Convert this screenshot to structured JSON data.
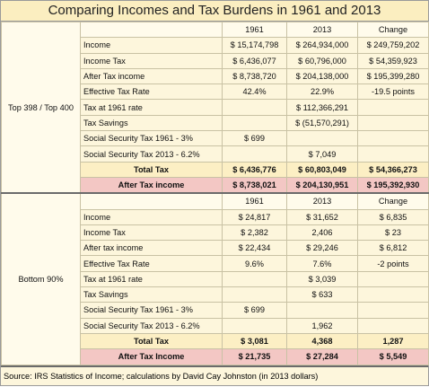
{
  "title": "Comparing Incomes and Tax Burdens in 1961 and 2013",
  "sections": [
    {
      "group": "Top 398 / Top 400",
      "header": [
        "1961",
        "2013",
        "Change"
      ],
      "rows": [
        {
          "label": "Income",
          "values": [
            "$ 15,174,798",
            "$ 264,934,000",
            "$ 249,759,202"
          ]
        },
        {
          "label": "Income Tax",
          "values": [
            "$ 6,436,077",
            "$ 60,796,000",
            "$ 54,359,923"
          ]
        },
        {
          "label": "After Tax income",
          "values": [
            "$ 8,738,720",
            "$ 204,138,000",
            "$ 195,399,280"
          ]
        },
        {
          "label": "Effective Tax Rate",
          "values": [
            "42.4%",
            "22.9%",
            "-19.5 points"
          ]
        },
        {
          "label": "Tax at 1961 rate",
          "values": [
            null,
            "$ 112,366,291",
            null
          ]
        },
        {
          "label": "Tax Savings",
          "values": [
            null,
            "$ (51,570,291)",
            null
          ]
        },
        {
          "label": "Social Security Tax 1961 - 3%",
          "values": [
            "$ 699",
            null,
            null
          ]
        },
        {
          "label": "Social Security Tax 2013 - 6.2%",
          "values": [
            null,
            "$ 7,049",
            null
          ]
        },
        {
          "label": "Total Tax",
          "values": [
            "$ 6,436,776",
            "$ 60,803,049",
            "$ 54,366,273"
          ]
        },
        {
          "label": "After Tax income",
          "values": [
            "$ 8,738,021",
            "$ 204,130,951",
            "$ 195,392,930"
          ]
        }
      ]
    },
    {
      "group": "Bottom 90%",
      "header": [
        "1961",
        "2013",
        "Change"
      ],
      "rows": [
        {
          "label": "Income",
          "values": [
            "$ 24,817",
            "$ 31,652",
            "$ 6,835"
          ]
        },
        {
          "label": "Income Tax",
          "values": [
            "$ 2,382",
            "2,406",
            "$ 23"
          ]
        },
        {
          "label": "After tax income",
          "values": [
            "$ 22,434",
            "$ 29,246",
            "$ 6,812"
          ]
        },
        {
          "label": "Effective Tax Rate",
          "values": [
            "9.6%",
            "7.6%",
            "-2 points"
          ]
        },
        {
          "label": "Tax at 1961 rate",
          "values": [
            null,
            "$ 3,039",
            null
          ]
        },
        {
          "label": "Tax Savings",
          "values": [
            null,
            "$ 633",
            null
          ]
        },
        {
          "label": "Social Security Tax 1961 - 3%",
          "values": [
            "$ 699",
            null,
            null
          ]
        },
        {
          "label": "Social Security Tax 2013 - 6.2%",
          "values": [
            null,
            "1,962",
            null
          ]
        },
        {
          "label": "Total Tax",
          "values": [
            "$ 3,081",
            "4,368",
            "1,287"
          ]
        },
        {
          "label": "After Tax Income",
          "values": [
            "$ 21,735",
            "$ 27,284",
            "$ 5,549"
          ]
        }
      ]
    }
  ],
  "footer": "Source: IRS  Statistics of Income; calculations by David Cay Johnston (in 2013 dollars)"
}
